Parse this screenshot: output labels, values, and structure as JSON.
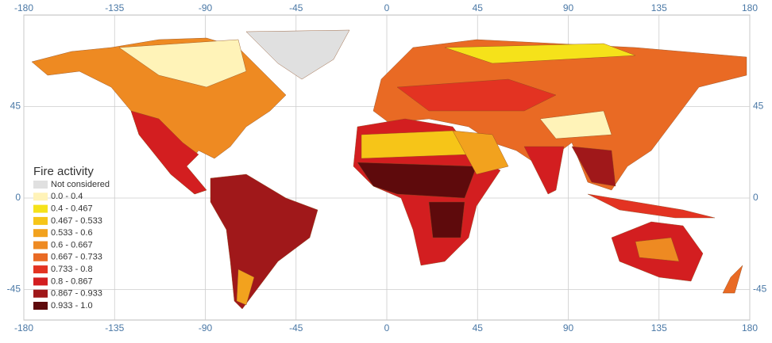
{
  "chart_data": {
    "type": "map",
    "xlim": [
      -180,
      180
    ],
    "ylim": [
      -60,
      90
    ],
    "xticks": [
      -180,
      -135,
      -90,
      -45,
      0,
      45,
      90,
      135,
      180
    ],
    "yticks": [
      45,
      0,
      -45
    ],
    "grid": true,
    "legend": {
      "title": "Fire activity",
      "position": "lower left",
      "items": [
        {
          "label": "Not considered",
          "color": "#e0e0e0"
        },
        {
          "label": "0.0 - 0.4",
          "color": "#fff3b8"
        },
        {
          "label": "0.4 - 0.467",
          "color": "#f5e21a"
        },
        {
          "label": "0.467 - 0.533",
          "color": "#f6c518"
        },
        {
          "label": "0.533 - 0.6",
          "color": "#f2a21e"
        },
        {
          "label": "0.6 - 0.667",
          "color": "#ee8a22"
        },
        {
          "label": "0.667 - 0.733",
          "color": "#e96a24"
        },
        {
          "label": "0.733 - 0.8",
          "color": "#e33322"
        },
        {
          "label": "0.8 - 0.867",
          "color": "#d31e20"
        },
        {
          "label": "0.867 - 0.933",
          "color": "#a0181a"
        },
        {
          "label": "0.933 - 1.0",
          "color": "#5e0a0c"
        }
      ]
    }
  }
}
